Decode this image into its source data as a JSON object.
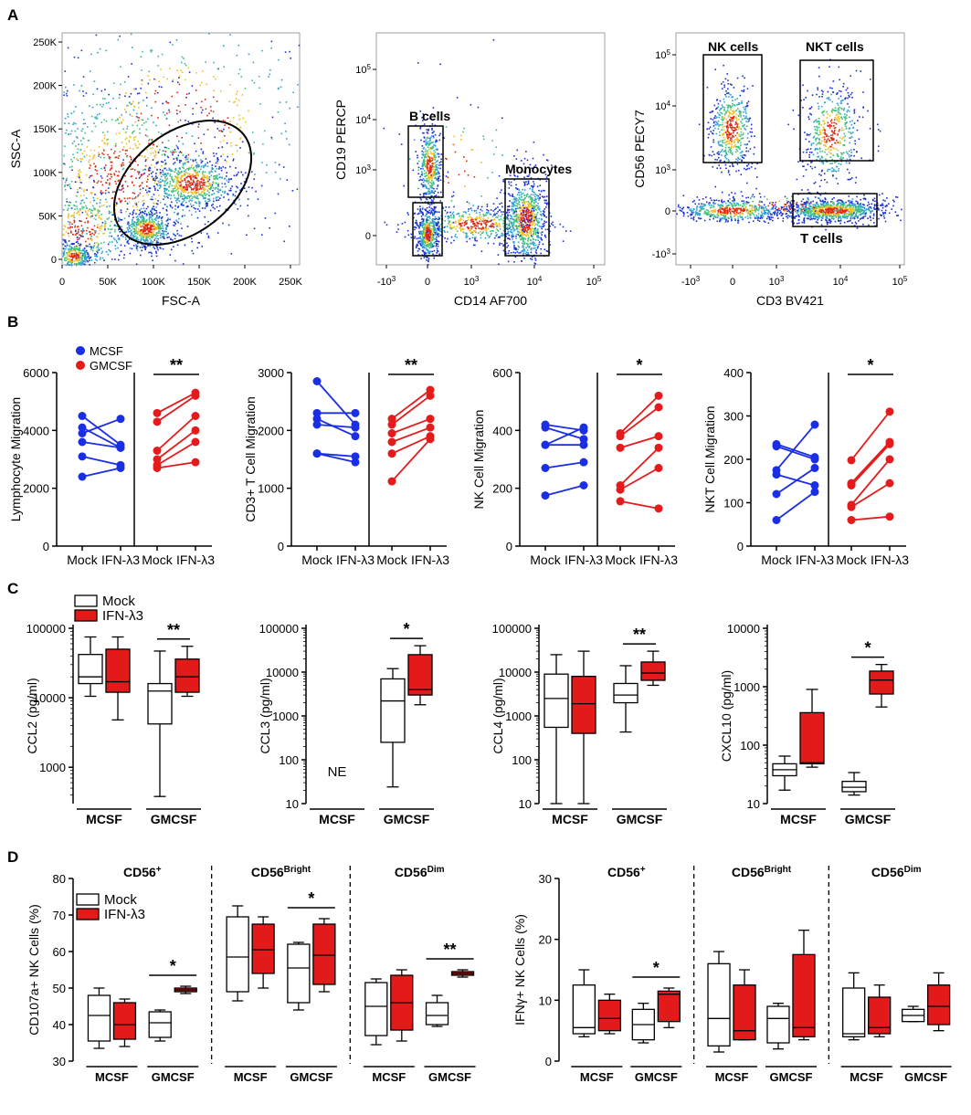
{
  "colors": {
    "mcsf": "#1a2ee6",
    "gmcsf": "#e61a1a",
    "mock_fill": "#ffffff",
    "ifn_fill": "#e31a1a"
  },
  "panel_labels": {
    "a": "A",
    "b": "B",
    "c": "C",
    "d": "D"
  },
  "chart_data": [
    {
      "type": "scatter",
      "id": "flow-fsc-ssc",
      "xlabel": "FSC-A",
      "ylabel": "SSC-A",
      "xticks": [
        "0",
        "50K",
        "100K",
        "150K",
        "200K",
        "250K"
      ],
      "yticks": [
        "0",
        "50K",
        "100K",
        "150K",
        "200K",
        "250K"
      ],
      "xlim": [
        0,
        260000
      ],
      "ylim": [
        0,
        260000
      ],
      "gate": {
        "shape": "ellipse",
        "cx": 160000,
        "cy": 110000
      }
    },
    {
      "type": "scatter",
      "id": "flow-cd14-cd19",
      "xlabel": "CD14 AF700",
      "ylabel": "CD19 PERCP",
      "xticks": [
        "-10^3",
        "0",
        "10^3",
        "10^4",
        "10^5"
      ],
      "yticks": [
        "0",
        "10^3",
        "10^4",
        "10^5"
      ],
      "gates": [
        "B cells",
        "Monocytes"
      ]
    },
    {
      "type": "scatter",
      "id": "flow-cd3-cd56",
      "xlabel": "CD3 BV421",
      "ylabel": "CD56 PECY7",
      "xticks": [
        "-10^3",
        "0",
        "10^3",
        "10^4",
        "10^5"
      ],
      "yticks": [
        "-10^3",
        "0",
        "10^3",
        "10^4",
        "10^5"
      ],
      "gates": [
        "NK cells",
        "NKT cells",
        "T cells"
      ]
    },
    {
      "type": "line",
      "id": "lymphocyte-migration",
      "ylabel": "Lymphocyte Migration",
      "categories": [
        "Mock",
        "IFN-λ3",
        "Mock",
        "IFN-λ3"
      ],
      "ylim": [
        0,
        6000
      ],
      "yticks": [
        0,
        2000,
        4000,
        6000
      ],
      "significance": "**",
      "series": [
        {
          "name": "MCSF",
          "pairs": [
            [
              4500,
              3500
            ],
            [
              4100,
              3400
            ],
            [
              3900,
              4400
            ],
            [
              3600,
              3400
            ],
            [
              3100,
              2800
            ],
            [
              2400,
              2700
            ]
          ]
        },
        {
          "name": "GMCSF",
          "pairs": [
            [
              4600,
              5300
            ],
            [
              4300,
              5200
            ],
            [
              3300,
              4500
            ],
            [
              3000,
              4000
            ],
            [
              2800,
              3600
            ],
            [
              2700,
              2900
            ]
          ]
        }
      ],
      "legend": [
        "MCSF",
        "GMCSF"
      ]
    },
    {
      "type": "line",
      "id": "cd3-t-cell-migration",
      "ylabel": "CD3+ T Cell Migration",
      "categories": [
        "Mock",
        "IFN-λ3",
        "Mock",
        "IFN-λ3"
      ],
      "ylim": [
        0,
        3000
      ],
      "yticks": [
        0,
        1000,
        2000,
        3000
      ],
      "significance": "**",
      "series": [
        {
          "name": "MCSF",
          "pairs": [
            [
              2850,
              2100
            ],
            [
              2300,
              2300
            ],
            [
              2200,
              1900
            ],
            [
              2100,
              2050
            ],
            [
              1600,
              1550
            ],
            [
              1600,
              1450
            ]
          ]
        },
        {
          "name": "GMCSF",
          "pairs": [
            [
              2200,
              2700
            ],
            [
              2100,
              2600
            ],
            [
              1950,
              2200
            ],
            [
              1800,
              2050
            ],
            [
              1600,
              1900
            ],
            [
              1120,
              1850
            ]
          ]
        }
      ]
    },
    {
      "type": "line",
      "id": "nk-cell-migration",
      "ylabel": "NK Cell Migration",
      "categories": [
        "Mock",
        "IFN-λ3",
        "Mock",
        "IFN-λ3"
      ],
      "ylim": [
        0,
        600
      ],
      "yticks": [
        0,
        200,
        400,
        600
      ],
      "significance": "*",
      "series": [
        {
          "name": "MCSF",
          "pairs": [
            [
              420,
              400
            ],
            [
              410,
              370
            ],
            [
              350,
              410
            ],
            [
              350,
              350
            ],
            [
              270,
              290
            ],
            [
              175,
              210
            ]
          ]
        },
        {
          "name": "GMCSF",
          "pairs": [
            [
              390,
              520
            ],
            [
              380,
              480
            ],
            [
              340,
              380
            ],
            [
              210,
              340
            ],
            [
              195,
              270
            ],
            [
              155,
              130
            ]
          ]
        }
      ]
    },
    {
      "type": "line",
      "id": "nkt-cell-migration",
      "ylabel": "NKT Cell Migration",
      "categories": [
        "Mock",
        "IFN-λ3",
        "Mock",
        "IFN-λ3"
      ],
      "ylim": [
        0,
        400
      ],
      "yticks": [
        0,
        100,
        200,
        300,
        400
      ],
      "significance": "*",
      "series": [
        {
          "name": "MCSF",
          "pairs": [
            [
              235,
              205
            ],
            [
              230,
              200
            ],
            [
              175,
              280
            ],
            [
              165,
              140
            ],
            [
              120,
              180
            ],
            [
              60,
              125
            ]
          ]
        },
        {
          "name": "GMCSF",
          "pairs": [
            [
              198,
              310
            ],
            [
              145,
              240
            ],
            [
              140,
              235
            ],
            [
              95,
              200
            ],
            [
              90,
              145
            ],
            [
              60,
              68
            ]
          ]
        }
      ]
    },
    {
      "type": "box",
      "id": "ccl2",
      "ylabel": "CCL2 (pg/ml)",
      "scale": "log",
      "ylim": [
        300,
        100000
      ],
      "yticks": [
        "1000",
        "10000",
        "100000"
      ],
      "groups": [
        "MCSF",
        "GMCSF"
      ],
      "legend": [
        "Mock",
        "IFN-λ3"
      ],
      "significance": [
        {
          "group": "GMCSF",
          "label": "**"
        }
      ],
      "boxes": [
        {
          "group": "MCSF",
          "series": "Mock",
          "min": 10500,
          "q1": 16000,
          "median": 20000,
          "q3": 42000,
          "max": 75000
        },
        {
          "group": "MCSF",
          "series": "IFN-λ3",
          "min": 4800,
          "q1": 12000,
          "median": 17000,
          "q3": 50000,
          "max": 75000
        },
        {
          "group": "GMCSF",
          "series": "Mock",
          "min": 380,
          "q1": 4200,
          "median": 12500,
          "q3": 16000,
          "max": 47000
        },
        {
          "group": "GMCSF",
          "series": "IFN-λ3",
          "min": 10500,
          "q1": 12000,
          "median": 20000,
          "q3": 36000,
          "max": 55000
        }
      ]
    },
    {
      "type": "box",
      "id": "ccl3",
      "ylabel": "CCL3 (pg/ml)",
      "scale": "log",
      "ylim": [
        10,
        100000
      ],
      "yticks": [
        "10",
        "100",
        "1000",
        "10000",
        "100000"
      ],
      "groups": [
        "MCSF",
        "GMCSF"
      ],
      "annotations": [
        {
          "group": "MCSF",
          "text": "NE"
        }
      ],
      "significance": [
        {
          "group": "GMCSF",
          "label": "*"
        }
      ],
      "boxes": [
        {
          "group": "GMCSF",
          "series": "Mock",
          "min": 24,
          "q1": 250,
          "median": 2200,
          "q3": 7000,
          "max": 12000
        },
        {
          "group": "GMCSF",
          "series": "IFN-λ3",
          "min": 1800,
          "q1": 3000,
          "median": 4000,
          "q3": 25000,
          "max": 40000
        }
      ]
    },
    {
      "type": "box",
      "id": "ccl4",
      "ylabel": "CCL4 (pg/ml)",
      "scale": "log",
      "ylim": [
        10,
        100000
      ],
      "yticks": [
        "10",
        "100",
        "1000",
        "10000",
        "100000"
      ],
      "groups": [
        "MCSF",
        "GMCSF"
      ],
      "significance": [
        {
          "group": "GMCSF",
          "label": "**"
        }
      ],
      "boxes": [
        {
          "group": "MCSF",
          "series": "Mock",
          "min": 10,
          "q1": 550,
          "median": 2500,
          "q3": 9000,
          "max": 25000
        },
        {
          "group": "MCSF",
          "series": "IFN-λ3",
          "min": 10,
          "q1": 400,
          "median": 1900,
          "q3": 8000,
          "max": 30000
        },
        {
          "group": "GMCSF",
          "series": "Mock",
          "min": 430,
          "q1": 2000,
          "median": 3000,
          "q3": 5500,
          "max": 14000
        },
        {
          "group": "GMCSF",
          "series": "IFN-λ3",
          "min": 5000,
          "q1": 6500,
          "median": 9500,
          "q3": 17000,
          "max": 30000
        }
      ]
    },
    {
      "type": "box",
      "id": "cxcl10",
      "ylabel": "CXCL10 (pg/ml)",
      "scale": "log",
      "ylim": [
        10,
        10000
      ],
      "yticks": [
        "10",
        "100",
        "1000",
        "10000"
      ],
      "groups": [
        "MCSF",
        "GMCSF"
      ],
      "significance": [
        {
          "group": "GMCSF",
          "label": "*"
        }
      ],
      "boxes": [
        {
          "group": "MCSF",
          "series": "Mock",
          "min": 17,
          "q1": 30,
          "median": 38,
          "q3": 48,
          "max": 65
        },
        {
          "group": "MCSF",
          "series": "IFN-λ3",
          "min": 42,
          "q1": 48,
          "median": 50,
          "q3": 360,
          "max": 900
        },
        {
          "group": "GMCSF",
          "series": "Mock",
          "min": 14,
          "q1": 16,
          "median": 19,
          "q3": 24,
          "max": 34
        },
        {
          "group": "GMCSF",
          "series": "IFN-λ3",
          "min": 450,
          "q1": 750,
          "median": 1300,
          "q3": 1850,
          "max": 2400
        }
      ]
    },
    {
      "type": "box",
      "id": "cd107a",
      "ylabel": "CD107a+ NK Cells (%)",
      "ylim": [
        30,
        80
      ],
      "yticks": [
        30,
        40,
        50,
        60,
        70,
        80
      ],
      "subsets": [
        "CD56+",
        "CD56Bright",
        "CD56Dim"
      ],
      "groups": [
        "MCSF",
        "GMCSF"
      ],
      "legend": [
        "Mock",
        "IFN-λ3"
      ],
      "significance": [
        {
          "subset": 0,
          "label": "*"
        },
        {
          "subset": 1,
          "label": "*"
        },
        {
          "subset": 2,
          "label": "**"
        }
      ],
      "boxes": [
        [
          {
            "min": 33.5,
            "q1": 35.5,
            "median": 42.5,
            "q3": 48,
            "max": 50
          },
          {
            "min": 34,
            "q1": 36,
            "median": 40,
            "q3": 46,
            "max": 47
          },
          {
            "min": 35.5,
            "q1": 36.5,
            "median": 40.5,
            "q3": 43.5,
            "max": 44
          },
          {
            "min": 48.5,
            "q1": 49,
            "median": 49.5,
            "q3": 50,
            "max": 50.5
          }
        ],
        [
          {
            "min": 46.5,
            "q1": 49,
            "median": 58.5,
            "q3": 69.5,
            "max": 72.5
          },
          {
            "min": 50,
            "q1": 54,
            "median": 60.5,
            "q3": 67.5,
            "max": 69.5
          },
          {
            "min": 44,
            "q1": 46,
            "median": 55.5,
            "q3": 62,
            "max": 62.5
          },
          {
            "min": 49,
            "q1": 51,
            "median": 59,
            "q3": 67.5,
            "max": 69
          }
        ],
        [
          {
            "min": 34.5,
            "q1": 37,
            "median": 45,
            "q3": 51.5,
            "max": 52.5
          },
          {
            "min": 35.5,
            "q1": 38.5,
            "median": 46,
            "q3": 53.5,
            "max": 55
          },
          {
            "min": 39.5,
            "q1": 40,
            "median": 42.5,
            "q3": 46,
            "max": 48
          },
          {
            "min": 53,
            "q1": 53.5,
            "median": 54,
            "q3": 54.5,
            "max": 55
          }
        ]
      ]
    },
    {
      "type": "box",
      "id": "ifng",
      "ylabel": "IFNγ+ NK Cells (%)",
      "ylim": [
        0,
        30
      ],
      "yticks": [
        0,
        10,
        20,
        30
      ],
      "subsets": [
        "CD56+",
        "CD56Bright",
        "CD56Dim"
      ],
      "groups": [
        "MCSF",
        "GMCSF"
      ],
      "significance": [
        {
          "subset": 0,
          "label": "*"
        }
      ],
      "boxes": [
        [
          {
            "min": 4,
            "q1": 4.5,
            "median": 5.5,
            "q3": 12.5,
            "max": 15
          },
          {
            "min": 4.5,
            "q1": 5,
            "median": 7,
            "q3": 10,
            "max": 11
          },
          {
            "min": 3,
            "q1": 3.5,
            "median": 6,
            "q3": 8.5,
            "max": 9.5
          },
          {
            "min": 5.5,
            "q1": 6.5,
            "median": 11,
            "q3": 11.5,
            "max": 12
          }
        ],
        [
          {
            "min": 1.5,
            "q1": 2.5,
            "median": 7,
            "q3": 16,
            "max": 18
          },
          {
            "min": 3.5,
            "q1": 3.5,
            "median": 5,
            "q3": 12.5,
            "max": 15
          },
          {
            "min": 2,
            "q1": 3,
            "median": 7,
            "q3": 9,
            "max": 9.5
          },
          {
            "min": 3.5,
            "q1": 4,
            "median": 5.5,
            "q3": 17.5,
            "max": 21.5
          }
        ],
        [
          {
            "min": 3.5,
            "q1": 4,
            "median": 4.5,
            "q3": 12,
            "max": 14.5
          },
          {
            "min": 4,
            "q1": 4.5,
            "median": 5.5,
            "q3": 10.5,
            "max": 12.5
          },
          {
            "min": 6.5,
            "q1": 6.5,
            "median": 7.5,
            "q3": 8.5,
            "max": 9
          },
          {
            "min": 5,
            "q1": 6,
            "median": 9,
            "q3": 12.5,
            "max": 14.5
          }
        ]
      ]
    }
  ]
}
